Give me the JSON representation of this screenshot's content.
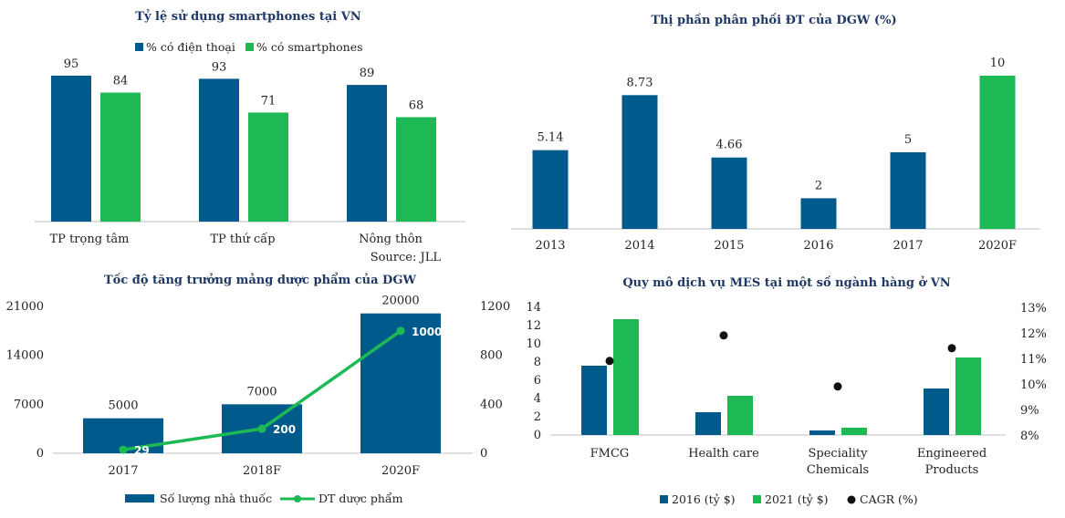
{
  "colors": {
    "blue": "#005a8c",
    "green": "#1db954",
    "black": "#111111",
    "axis": "#bfbfbf"
  },
  "chart_data": [
    {
      "id": "c1",
      "type": "bar",
      "title": "Tỷ lệ sử dụng smartphones tại VN",
      "categories": [
        "TP trọng tâm",
        "TP thứ cấp",
        "Nông thôn"
      ],
      "series": [
        {
          "name": "% có điện thoại",
          "values": [
            95,
            93,
            89
          ]
        },
        {
          "name": "% có smartphones",
          "values": [
            84,
            71,
            68
          ]
        }
      ],
      "ylim": [
        0,
        100
      ],
      "source": "Source: JLL",
      "legend": "top"
    },
    {
      "id": "c2",
      "type": "bar",
      "title": "Thị phần phân phối ĐT của DGW (%)",
      "categories": [
        "2013",
        "2014",
        "2015",
        "2016",
        "2017",
        "2020F"
      ],
      "values": [
        5.14,
        8.73,
        4.66,
        2,
        5,
        10
      ],
      "value_labels": [
        "5.14",
        "8.73",
        "4.66",
        "2",
        "5",
        "10"
      ],
      "highlight_index": 5,
      "ylim": [
        0,
        10.5
      ]
    },
    {
      "id": "c3",
      "type": "bar",
      "title": "Tốc độ tăng trưởng mảng dược phẩm của DGW",
      "categories": [
        "2017",
        "2018F",
        "2020F"
      ],
      "bar_series": {
        "name": "Số lượng nhà thuốc",
        "values": [
          5000,
          7000,
          20000
        ]
      },
      "line_series": {
        "name": "DT dược phẩm",
        "values": [
          29,
          200,
          1000
        ]
      },
      "y_left": {
        "ticks": [
          "0",
          "7000",
          "14000",
          "21000"
        ],
        "range": [
          0,
          21000
        ]
      },
      "y_right": {
        "ticks": [
          "0",
          "400",
          "800",
          "1200"
        ],
        "range": [
          0,
          1200
        ]
      },
      "legend": "bottom"
    },
    {
      "id": "c4",
      "type": "bar",
      "title": "Quy mô dịch vụ MES tại một số ngành hàng ở VN",
      "categories": [
        {
          "line1": "FMCG",
          "line2": ""
        },
        {
          "line1": "Health care",
          "line2": ""
        },
        {
          "line1": "Speciality",
          "line2": "Chemicals"
        },
        {
          "line1": "Engineered",
          "line2": "Products"
        }
      ],
      "series": [
        {
          "name": "2016 (tỷ $)",
          "values": [
            7.6,
            2.5,
            0.5,
            5.1
          ]
        },
        {
          "name": "2021 (tỷ $)",
          "values": [
            12.7,
            4.3,
            0.8,
            8.5
          ]
        }
      ],
      "scatter_series": {
        "name": "CAGR (%)",
        "values": [
          10.9,
          11.9,
          9.9,
          11.4
        ]
      },
      "y_left": {
        "ticks": [
          "0",
          "2",
          "4",
          "6",
          "8",
          "10",
          "12",
          "14"
        ],
        "range": [
          0,
          14
        ]
      },
      "y_right": {
        "ticks": [
          "8%",
          "9%",
          "10%",
          "11%",
          "12%",
          "13%"
        ],
        "range": [
          8,
          13
        ]
      },
      "legend": "bottom"
    }
  ]
}
